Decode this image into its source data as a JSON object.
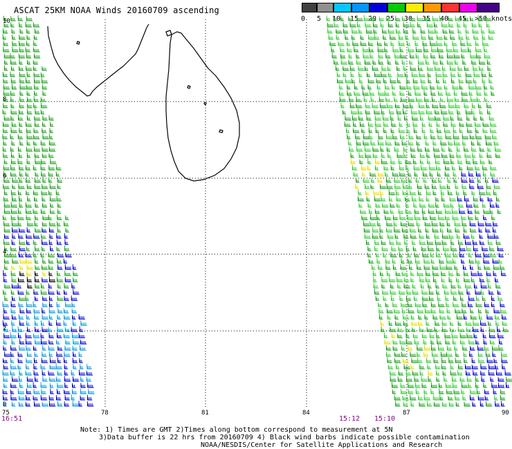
{
  "title": "ASCAT 25KM NOAA Winds 20160709 ascending",
  "legend": {
    "labels": [
      "0",
      "5",
      "10",
      "15",
      "20",
      "25",
      "30",
      "35",
      "40",
      "45",
      ">50 knots"
    ],
    "colors": [
      "#404040",
      "#909090",
      "#00c8ff",
      "#0096ff",
      "#0000dd",
      "#00cc00",
      "#ffee00",
      "#ff9900",
      "#ff3333",
      "#ee00ee",
      "#440088"
    ]
  },
  "axes": {
    "lon_ticks": [
      "75",
      "78",
      "81",
      "84",
      "87",
      "90"
    ],
    "lat_ticks": [
      "10",
      "8",
      "6",
      "4",
      "2",
      "0"
    ]
  },
  "pass_times": [
    "16:51",
    "15:12",
    "15:10"
  ],
  "notes": {
    "line1": "Note: 1) Times are GMT 2)Times along bottom correspond to measurement at 5N",
    "line2": "3)Data buffer is 22 hrs from 20160709 4) Black wind barbs indicate possible contamination",
    "line3": "NOAA/NESDIS/Center for Satellite Applications and Research"
  }
}
